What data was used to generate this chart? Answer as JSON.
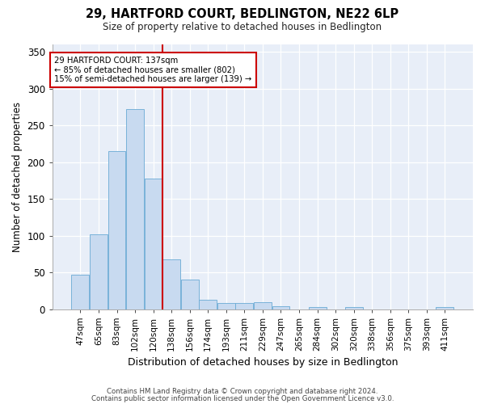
{
  "title": "29, HARTFORD COURT, BEDLINGTON, NE22 6LP",
  "subtitle": "Size of property relative to detached houses in Bedlington",
  "xlabel": "Distribution of detached houses by size in Bedlington",
  "ylabel": "Number of detached properties",
  "bar_color": "#c8daf0",
  "bar_edge_color": "#6aaad4",
  "background_color": "#e8eef8",
  "categories": [
    "47sqm",
    "65sqm",
    "83sqm",
    "102sqm",
    "120sqm",
    "138sqm",
    "156sqm",
    "174sqm",
    "193sqm",
    "211sqm",
    "229sqm",
    "247sqm",
    "265sqm",
    "284sqm",
    "302sqm",
    "320sqm",
    "338sqm",
    "356sqm",
    "375sqm",
    "393sqm",
    "411sqm"
  ],
  "values": [
    47,
    102,
    215,
    272,
    178,
    68,
    40,
    13,
    8,
    8,
    9,
    4,
    0,
    3,
    0,
    3,
    0,
    0,
    0,
    0,
    3
  ],
  "vline_x": 4.5,
  "vline_color": "#cc0000",
  "annotation_text": "29 HARTFORD COURT: 137sqm\n← 85% of detached houses are smaller (802)\n15% of semi-detached houses are larger (139) →",
  "annotation_box_color": "#ffffff",
  "annotation_box_edge_color": "#cc0000",
  "ylim": [
    0,
    360
  ],
  "yticks": [
    0,
    50,
    100,
    150,
    200,
    250,
    300,
    350
  ],
  "footer_line1": "Contains HM Land Registry data © Crown copyright and database right 2024.",
  "footer_line2": "Contains public sector information licensed under the Open Government Licence v3.0."
}
